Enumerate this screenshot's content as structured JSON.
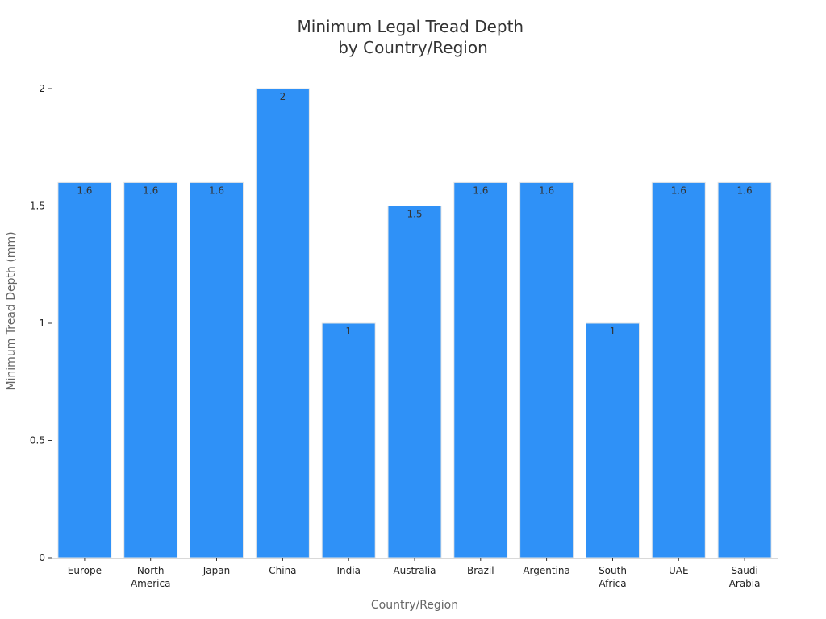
{
  "chart_data": {
    "type": "bar",
    "title_lines": [
      "Minimum Legal Tread Depth",
      "by Country/Region"
    ],
    "xlabel": "Country/Region",
    "ylabel": "Minimum Tread Depth (mm)",
    "categories": [
      [
        "Europe"
      ],
      [
        "North",
        "America"
      ],
      [
        "Japan"
      ],
      [
        "China"
      ],
      [
        "India"
      ],
      [
        "Australia"
      ],
      [
        "Brazil"
      ],
      [
        "Argentina"
      ],
      [
        "South",
        "Africa"
      ],
      [
        "UAE"
      ],
      [
        "Saudi",
        "Arabia"
      ]
    ],
    "values": [
      1.6,
      1.6,
      1.6,
      2,
      1,
      1.5,
      1.6,
      1.6,
      1,
      1.6,
      1.6
    ],
    "data_labels": [
      "1.6",
      "1.6",
      "1.6",
      "2",
      "1",
      "1.5",
      "1.6",
      "1.6",
      "1",
      "1.6",
      "1.6"
    ],
    "ylim": [
      0,
      2.1
    ],
    "yticks": [
      0,
      0.5,
      1,
      1.5,
      2
    ],
    "ytick_labels": [
      "0",
      "0.5",
      "1",
      "1.5",
      "2"
    ],
    "bar_color": "#2f91f7",
    "bar_edge_color": "#e6e6e6",
    "grid": false,
    "legend": "none"
  }
}
